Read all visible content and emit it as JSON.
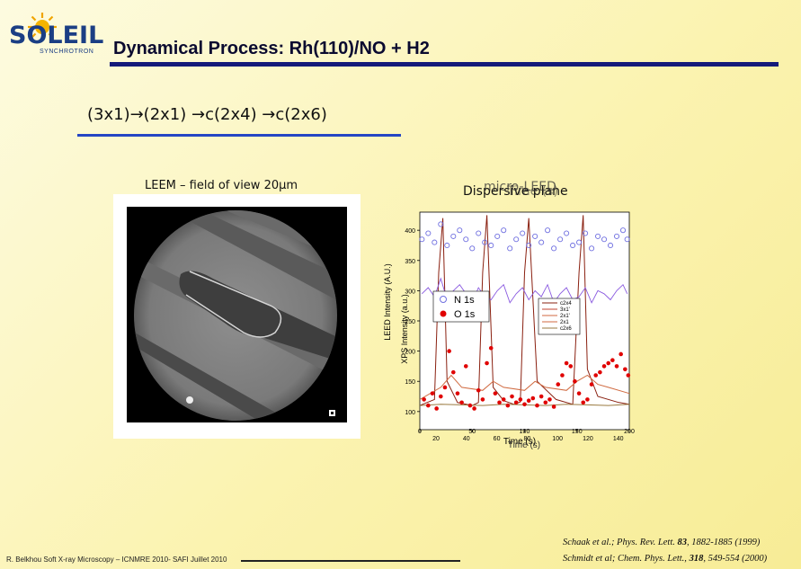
{
  "logo": {
    "word": "SOLEIL",
    "sub": "SYNCHROTRON"
  },
  "title": "Dynamical Process: Rh(110)/NO + H2",
  "reaction_sequence": "(3x1)→(2x1) →c(2x4) →c(2x6)",
  "leem": {
    "caption": "LEEM – field of view 20µm"
  },
  "plot": {
    "title_base": "Dispersive plane",
    "title_overlay_1": "micro-LEED",
    "title_overlay_2": "Time (s)",
    "y_labels": [
      "LEED Intensity (A.U.)",
      "XPS Intensity (a.u.)"
    ],
    "x_labels": [
      "Time (s)",
      "Time (s)"
    ],
    "yticks": [
      "400",
      "350",
      "300",
      "250",
      "200",
      "150",
      "100"
    ],
    "xticks_a": [
      "20",
      "40",
      "60",
      "80",
      "100",
      "120",
      "140"
    ],
    "xticks_b": [
      "0",
      "50",
      "100",
      "150",
      "200"
    ],
    "legend_left": [
      "N 1s",
      "O 1s"
    ],
    "legend_right": [
      "c2x4",
      "3x1'",
      "2x1'",
      "2x1",
      "c2x6"
    ],
    "colors": {
      "n1s": "#7070e0",
      "o1s": "#e00000",
      "leed_c2x4": "#8a2010",
      "leed_3x1": "#c04030",
      "leed_2x1": "#d06a40",
      "leed_c2x6": "#9a7a40"
    }
  },
  "chart_data": {
    "type": "scatter",
    "title": "micro-LEED",
    "xlabel": "Time (s)",
    "ylabel": "XPS Intensity (a.u.)",
    "xlim": [
      0,
      200
    ],
    "ylim": [
      70,
      430
    ],
    "series": [
      {
        "name": "N 1s",
        "x": [
          2,
          8,
          14,
          20,
          26,
          32,
          38,
          44,
          50,
          56,
          62,
          68,
          74,
          80,
          86,
          92,
          98,
          104,
          110,
          116,
          122,
          128,
          134,
          140,
          146,
          152,
          158,
          164,
          170,
          176,
          182,
          188,
          194,
          198
        ],
        "values": [
          385,
          395,
          380,
          410,
          375,
          390,
          400,
          385,
          370,
          395,
          380,
          375,
          390,
          400,
          370,
          385,
          395,
          375,
          390,
          380,
          400,
          370,
          385,
          395,
          375,
          380,
          395,
          370,
          390,
          385,
          375,
          390,
          400,
          385
        ]
      },
      {
        "name": "O 1s",
        "x": [
          4,
          8,
          12,
          16,
          20,
          24,
          28,
          32,
          36,
          40,
          44,
          48,
          52,
          56,
          60,
          64,
          68,
          72,
          76,
          80,
          84,
          88,
          92,
          96,
          100,
          104,
          108,
          112,
          116,
          120,
          124,
          128,
          132,
          136,
          140,
          144,
          148,
          152,
          156,
          160,
          164,
          168,
          172,
          176,
          180,
          184,
          188,
          192,
          196,
          199
        ],
        "values": [
          120,
          110,
          130,
          105,
          125,
          140,
          200,
          165,
          130,
          115,
          175,
          110,
          105,
          135,
          120,
          180,
          205,
          130,
          115,
          120,
          110,
          125,
          115,
          120,
          112,
          118,
          122,
          110,
          125,
          115,
          120,
          108,
          145,
          160,
          180,
          175,
          150,
          130,
          115,
          120,
          145,
          160,
          165,
          175,
          180,
          185,
          175,
          195,
          170,
          160
        ]
      }
    ],
    "leed_series": [
      {
        "name": "c2x4",
        "x": [
          0,
          14,
          18,
          22,
          26,
          36,
          50,
          56,
          60,
          64,
          70,
          80,
          90,
          96,
          100,
          104,
          112,
          130,
          146,
          152,
          156,
          160,
          170,
          190,
          200
        ],
        "values": [
          110,
          120,
          330,
          420,
          150,
          115,
          110,
          115,
          330,
          425,
          140,
          118,
          112,
          116,
          330,
          420,
          150,
          120,
          112,
          330,
          425,
          170,
          125,
          115,
          112
        ]
      },
      {
        "name": "2x1",
        "x": [
          0,
          20,
          30,
          40,
          60,
          70,
          80,
          100,
          110,
          120,
          140,
          150,
          160,
          170,
          180,
          200
        ],
        "values": [
          120,
          140,
          160,
          140,
          135,
          150,
          140,
          135,
          150,
          140,
          135,
          150,
          160,
          145,
          140,
          130
        ]
      },
      {
        "name": "c2x6",
        "x": [
          0,
          20,
          40,
          60,
          80,
          100,
          120,
          140,
          160,
          180,
          200
        ],
        "values": [
          110,
          112,
          111,
          110,
          112,
          111,
          110,
          112,
          111,
          110,
          112
        ]
      }
    ]
  },
  "refs": [
    {
      "prefix": "Schaak et al.; Phys. Rev. Lett. ",
      "vol": "83",
      "rest": ", 1882-1885 (1999)"
    },
    {
      "prefix": "Schmidt et al; Chem. Phys. Lett., ",
      "vol": "318",
      "rest": ", 549-554 (2000)"
    }
  ],
  "footer": "R. Belkhou Soft X-ray Microscopy – ICNMRE 2010- SAFI Juillet 2010"
}
